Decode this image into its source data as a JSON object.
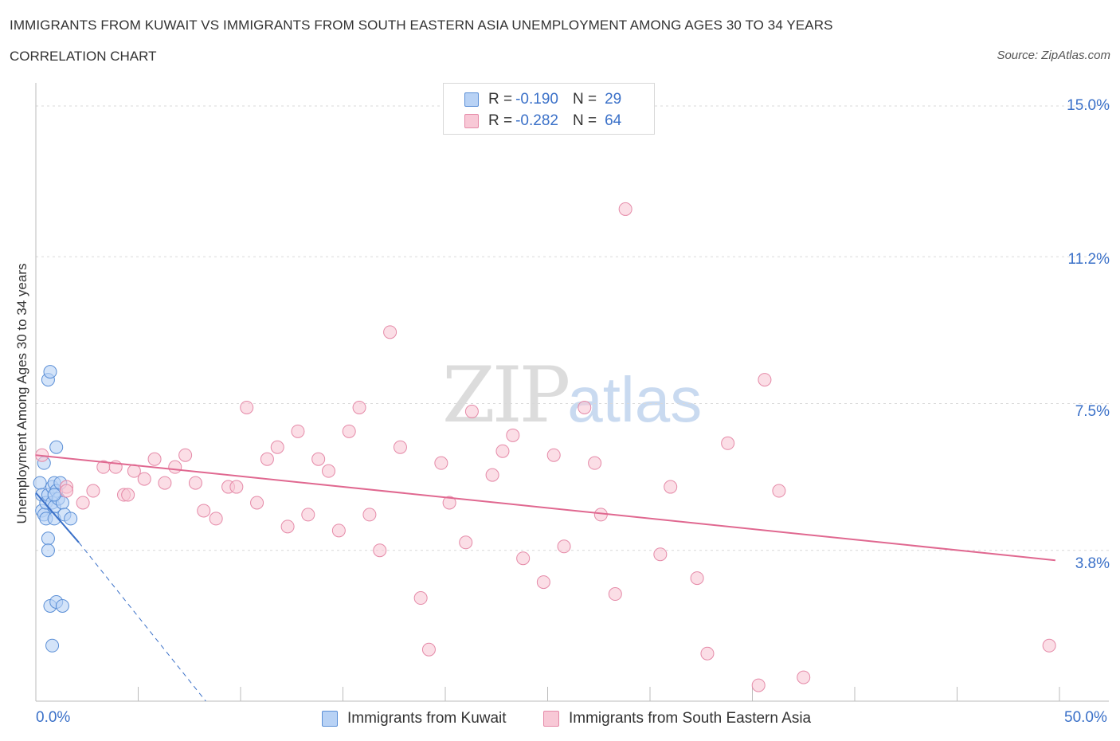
{
  "header": {
    "title": "IMMIGRANTS FROM KUWAIT VS IMMIGRANTS FROM SOUTH EASTERN ASIA UNEMPLOYMENT AMONG AGES 30 TO 34 YEARS",
    "subtitle": "CORRELATION CHART",
    "source": "Source: ZipAtlas.com"
  },
  "watermark": {
    "zip": "ZIP",
    "atlas": "atlas"
  },
  "legend": {
    "kuwait": {
      "r_label": "R =",
      "r_value": "-0.190",
      "n_label": "N =",
      "n_value": "29"
    },
    "sea": {
      "r_label": "R =",
      "r_value": "-0.282",
      "n_label": "N =",
      "n_value": "64"
    }
  },
  "bottom_legend": {
    "kuwait": "Immigrants from Kuwait",
    "sea": "Immigrants from South Eastern Asia"
  },
  "axes": {
    "x_min_label": "0.0%",
    "x_max_label": "50.0%",
    "y_ticks": [
      "15.0%",
      "11.2%",
      "7.5%",
      "3.8%"
    ],
    "ylabel": "Unemployment Among Ages 30 to 34 years"
  },
  "colors": {
    "kuwait_fill": "#b8d2f5",
    "kuwait_stroke": "#5b8fd6",
    "kuwait_line": "#3a70c8",
    "sea_fill": "#f8c8d6",
    "sea_stroke": "#e58aa8",
    "sea_line": "#e06890",
    "tick_text": "#3a70c8",
    "grid": "#d9d9d9"
  },
  "chart_data": {
    "type": "scatter",
    "title": "IMMIGRANTS FROM KUWAIT VS IMMIGRANTS FROM SOUTH EASTERN ASIA UNEMPLOYMENT AMONG AGES 30 TO 34 YEARS",
    "xlabel": "",
    "ylabel": "Unemployment Among Ages 30 to 34 years",
    "xlim": [
      0,
      50
    ],
    "ylim": [
      0,
      15.3
    ],
    "y_gridlines": [
      3.8,
      7.5,
      11.2,
      15.0
    ],
    "series": [
      {
        "name": "Immigrants from Kuwait",
        "r": -0.19,
        "n": 29,
        "points": [
          [
            0.2,
            5.5
          ],
          [
            0.3,
            5.2
          ],
          [
            0.3,
            4.8
          ],
          [
            0.4,
            4.7
          ],
          [
            0.4,
            6.0
          ],
          [
            0.5,
            4.6
          ],
          [
            0.5,
            5.0
          ],
          [
            0.6,
            5.2
          ],
          [
            0.6,
            4.1
          ],
          [
            0.6,
            3.8
          ],
          [
            0.6,
            8.1
          ],
          [
            0.7,
            8.3
          ],
          [
            0.8,
            5.0
          ],
          [
            0.8,
            5.4
          ],
          [
            0.9,
            4.9
          ],
          [
            0.9,
            5.5
          ],
          [
            0.9,
            4.6
          ],
          [
            0.7,
            2.4
          ],
          [
            0.8,
            1.4
          ],
          [
            1.0,
            6.4
          ],
          [
            1.0,
            5.3
          ],
          [
            1.0,
            2.5
          ],
          [
            1.1,
            5.1
          ],
          [
            1.2,
            5.5
          ],
          [
            1.3,
            2.4
          ],
          [
            1.3,
            5.0
          ],
          [
            1.4,
            4.7
          ],
          [
            1.7,
            4.6
          ],
          [
            0.9,
            5.2
          ]
        ],
        "trend": {
          "x": [
            0,
            2.1
          ],
          "y": [
            5.25,
            4.0
          ]
        },
        "trend_extension": {
          "x": [
            2.1,
            8.3
          ],
          "y": [
            4.0,
            0.0
          ]
        }
      },
      {
        "name": "Immigrants from South Eastern Asia",
        "r": -0.282,
        "n": 64,
        "points": [
          [
            0.3,
            6.2
          ],
          [
            1.5,
            5.4
          ],
          [
            1.5,
            5.3
          ],
          [
            2.3,
            5.0
          ],
          [
            2.8,
            5.3
          ],
          [
            3.3,
            5.9
          ],
          [
            3.9,
            5.9
          ],
          [
            4.3,
            5.2
          ],
          [
            4.8,
            5.8
          ],
          [
            5.3,
            5.6
          ],
          [
            5.8,
            6.1
          ],
          [
            6.3,
            5.5
          ],
          [
            6.8,
            5.9
          ],
          [
            7.3,
            6.2
          ],
          [
            7.8,
            5.5
          ],
          [
            8.2,
            4.8
          ],
          [
            8.8,
            4.6
          ],
          [
            9.4,
            5.4
          ],
          [
            9.8,
            5.4
          ],
          [
            10.3,
            7.4
          ],
          [
            10.8,
            5.0
          ],
          [
            11.3,
            6.1
          ],
          [
            11.8,
            6.4
          ],
          [
            12.3,
            4.4
          ],
          [
            12.8,
            6.8
          ],
          [
            13.3,
            4.7
          ],
          [
            13.8,
            6.1
          ],
          [
            14.3,
            5.8
          ],
          [
            14.8,
            4.3
          ],
          [
            15.3,
            6.8
          ],
          [
            15.8,
            7.4
          ],
          [
            16.3,
            4.7
          ],
          [
            16.8,
            3.8
          ],
          [
            17.3,
            9.3
          ],
          [
            17.8,
            6.4
          ],
          [
            18.8,
            2.6
          ],
          [
            19.2,
            1.3
          ],
          [
            19.8,
            6.0
          ],
          [
            20.2,
            5.0
          ],
          [
            21.0,
            4.0
          ],
          [
            21.3,
            7.3
          ],
          [
            22.3,
            5.7
          ],
          [
            22.8,
            6.3
          ],
          [
            23.3,
            6.7
          ],
          [
            23.8,
            3.6
          ],
          [
            24.8,
            3.0
          ],
          [
            25.3,
            6.2
          ],
          [
            25.8,
            3.9
          ],
          [
            26.8,
            7.4
          ],
          [
            27.3,
            6.0
          ],
          [
            27.6,
            4.7
          ],
          [
            28.3,
            2.7
          ],
          [
            28.8,
            12.4
          ],
          [
            30.5,
            3.7
          ],
          [
            31.0,
            5.4
          ],
          [
            32.3,
            3.1
          ],
          [
            32.8,
            1.2
          ],
          [
            33.8,
            6.5
          ],
          [
            35.3,
            0.4
          ],
          [
            35.6,
            8.1
          ],
          [
            36.3,
            5.3
          ],
          [
            37.5,
            0.6
          ],
          [
            49.5,
            1.4
          ],
          [
            4.5,
            5.2
          ]
        ],
        "trend": {
          "x": [
            0,
            49.8
          ],
          "y": [
            6.2,
            3.55
          ]
        }
      }
    ]
  }
}
